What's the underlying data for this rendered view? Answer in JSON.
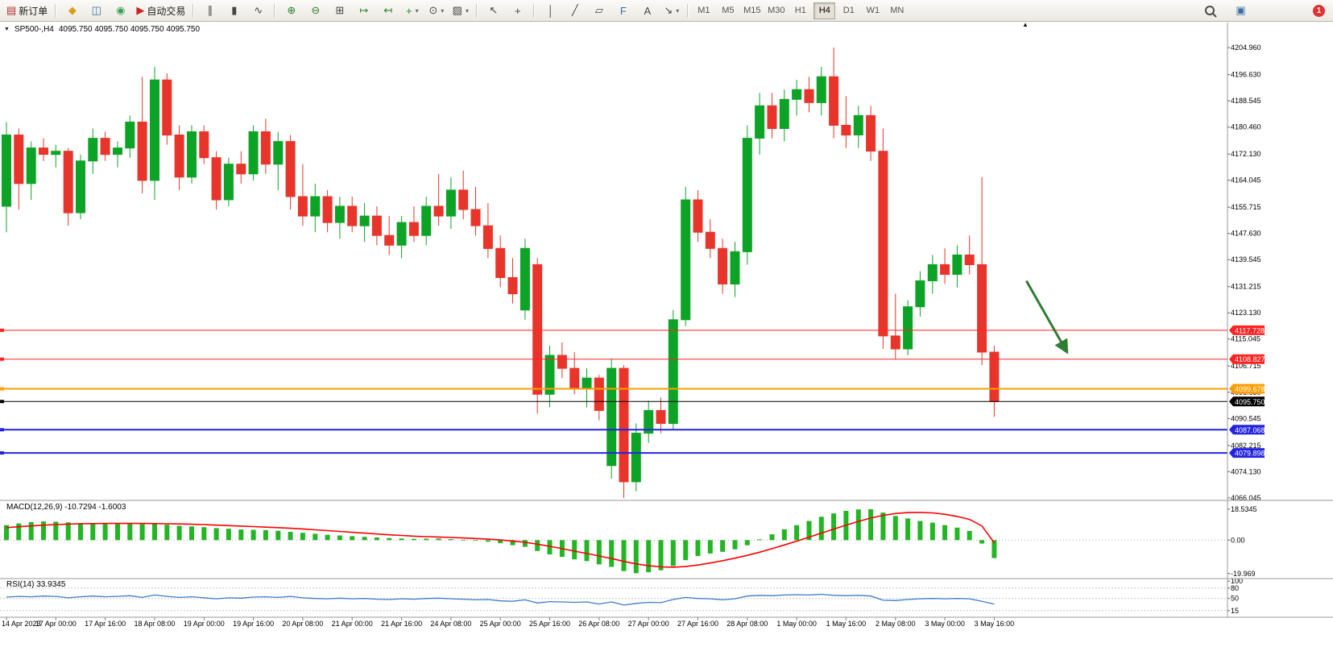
{
  "toolbar": {
    "buttons_left": [
      {
        "name": "new-order-button",
        "glyph": "▤",
        "glyph_color": "#b03030",
        "label": "新订单"
      },
      {
        "name": "separator"
      },
      {
        "name": "metaeditor-icon",
        "glyph": "◆",
        "glyph_color": "#d4a017"
      },
      {
        "name": "market-watch-icon",
        "glyph": "◫",
        "glyph_color": "#3a6ea5"
      },
      {
        "name": "data-window-icon",
        "glyph": "◉",
        "glyph_color": "#3aa05a"
      },
      {
        "name": "auto-trading-button",
        "glyph": "▶",
        "glyph_color": "#cc2222",
        "label": "自动交易"
      },
      {
        "name": "separator"
      },
      {
        "name": "bar-chart-mode-icon",
        "glyph": "∥"
      },
      {
        "name": "candlestick-mode-icon",
        "glyph": "▮"
      },
      {
        "name": "line-chart-mode-icon",
        "glyph": "∿"
      },
      {
        "name": "separator"
      },
      {
        "name": "zoom-in-icon",
        "glyph": "⊕",
        "glyph_color": "#2e7d32"
      },
      {
        "name": "zoom-out-icon",
        "glyph": "⊖",
        "glyph_color": "#2e7d32"
      },
      {
        "name": "tile-windows-icon",
        "glyph": "⊞"
      },
      {
        "name": "chart-shift-icon",
        "glyph": "↦",
        "glyph_color": "#2e7d32"
      },
      {
        "name": "auto-scroll-icon",
        "glyph": "↤",
        "glyph_color": "#2e7d32"
      },
      {
        "name": "add-indicator-button",
        "glyph": "+",
        "glyph_color": "#1f8f1f",
        "caret": true
      },
      {
        "name": "periods-button",
        "glyph": "⊙",
        "caret": true
      },
      {
        "name": "templates-button",
        "glyph": "▨",
        "caret": true
      },
      {
        "name": "separator"
      },
      {
        "name": "cursor-tool-icon",
        "glyph": "↖"
      },
      {
        "name": "crosshair-tool-icon",
        "glyph": "+"
      },
      {
        "name": "separator"
      },
      {
        "name": "vertical-line-tool-icon",
        "glyph": "│"
      },
      {
        "name": "trendline-tool-icon",
        "glyph": "╱"
      },
      {
        "name": "channel-tool-icon",
        "glyph": "▱"
      },
      {
        "name": "fibonacci-tool-icon",
        "glyph": "F",
        "glyph_color": "#3a6ea5"
      },
      {
        "name": "text-tool-icon",
        "glyph": "A"
      },
      {
        "name": "arrows-tool-button",
        "glyph": "↘",
        "caret": true
      },
      {
        "name": "separator"
      }
    ],
    "timeframes": [
      "M1",
      "M5",
      "M15",
      "M30",
      "H1",
      "H4",
      "D1",
      "W1",
      "MN"
    ],
    "active_timeframe": "H4",
    "community_glyph": "▣",
    "notification_count": "1"
  },
  "chart_header": {
    "collapse_icon": "▼",
    "symbol_period": "SP500-,H4",
    "ohlc": "4095.750 4095.750 4095.750 4095.750",
    "shift_marker": "▲"
  },
  "indicators": {
    "macd_label": "MACD(12,26,9) -10.7294 -1.6003",
    "rsi_label": "RSI(14) 33.9345"
  },
  "price_axis": {
    "ticks": [
      4204.96,
      4196.63,
      4188.545,
      4180.46,
      4172.13,
      4164.045,
      4155.715,
      4147.63,
      4139.545,
      4131.215,
      4123.13,
      4115.045,
      4106.715,
      4098.63,
      4090.545,
      4082.215,
      4074.13,
      4066.045
    ]
  },
  "levels": [
    {
      "value": "4117.728",
      "price": 4117.728,
      "color": "#ff2222",
      "width": 1,
      "name": "resistance-line-1"
    },
    {
      "value": "4108.827",
      "price": 4108.827,
      "color": "#ff2222",
      "width": 1,
      "name": "resistance-line-2"
    },
    {
      "value": "4099.678",
      "price": 4099.678,
      "color": "#ff9e00",
      "width": 2,
      "name": "orange-level-line"
    },
    {
      "value": "4095.750",
      "price": 4095.75,
      "color": "#000000",
      "width": 1,
      "name": "current-price-line"
    },
    {
      "value": "4087.068",
      "price": 4087.068,
      "color": "#2424e0",
      "width": 2,
      "name": "support-line-1"
    },
    {
      "value": "4079.898",
      "price": 4079.898,
      "color": "#2424e0",
      "width": 2,
      "name": "support-line-2"
    }
  ],
  "time_axis": [
    "14 Apr 2023",
    "17 Apr 00:00",
    "17 Apr 16:00",
    "18 Apr 08:00",
    "19 Apr 00:00",
    "19 Apr 16:00",
    "20 Apr 08:00",
    "21 Apr 00:00",
    "21 Apr 16:00",
    "24 Apr 08:00",
    "25 Apr 00:00",
    "25 Apr 16:00",
    "26 Apr 08:00",
    "27 Apr 00:00",
    "27 Apr 16:00",
    "28 Apr 08:00",
    "1 May 00:00",
    "1 May 16:00",
    "2 May 08:00",
    "3 May 00:00",
    "3 May 16:00"
  ],
  "chart_data": [
    {
      "type": "candlestick",
      "title": "SP500-,H4",
      "up_color": "#0da327",
      "down_color": "#e8352b",
      "ylim": [
        4065.5,
        4212.2
      ],
      "candles": [
        [
          4156,
          4182,
          4148,
          4178
        ],
        [
          4178,
          4180,
          4155,
          4163
        ],
        [
          4163,
          4176,
          4158,
          4174
        ],
        [
          4174,
          4177,
          4170,
          4172
        ],
        [
          4172,
          4175,
          4168,
          4173
        ],
        [
          4173,
          4174,
          4150,
          4154
        ],
        [
          4154,
          4172,
          4152,
          4170
        ],
        [
          4170,
          4180,
          4166,
          4177
        ],
        [
          4177,
          4179,
          4170,
          4172
        ],
        [
          4172,
          4176,
          4168,
          4174
        ],
        [
          4174,
          4184,
          4171,
          4182
        ],
        [
          4182,
          4196,
          4160,
          4164
        ],
        [
          4164,
          4199,
          4158,
          4195
        ],
        [
          4195,
          4197,
          4175,
          4178
        ],
        [
          4178,
          4181,
          4161,
          4165
        ],
        [
          4165,
          4181,
          4163,
          4179
        ],
        [
          4179,
          4181,
          4169,
          4171
        ],
        [
          4171,
          4173,
          4155,
          4158
        ],
        [
          4158,
          4171,
          4156,
          4169
        ],
        [
          4169,
          4173,
          4163,
          4166
        ],
        [
          4166,
          4181,
          4164,
          4179
        ],
        [
          4179,
          4183,
          4166,
          4169
        ],
        [
          4169,
          4179,
          4161,
          4176
        ],
        [
          4176,
          4178,
          4155,
          4159
        ],
        [
          4159,
          4169,
          4150,
          4153
        ],
        [
          4153,
          4163,
          4148,
          4159
        ],
        [
          4159,
          4161,
          4148,
          4151
        ],
        [
          4151,
          4159,
          4146,
          4156
        ],
        [
          4156,
          4159,
          4148,
          4150
        ],
        [
          4150,
          4157,
          4145,
          4153
        ],
        [
          4153,
          4156,
          4144,
          4147
        ],
        [
          4147,
          4153,
          4141,
          4144
        ],
        [
          4144,
          4153,
          4140,
          4151
        ],
        [
          4151,
          4156,
          4145,
          4147
        ],
        [
          4147,
          4159,
          4144,
          4156
        ],
        [
          4156,
          4166,
          4150,
          4153
        ],
        [
          4153,
          4165,
          4149,
          4161
        ],
        [
          4161,
          4167,
          4152,
          4155
        ],
        [
          4155,
          4162,
          4147,
          4150
        ],
        [
          4150,
          4157,
          4140,
          4143
        ],
        [
          4143,
          4147,
          4131,
          4134
        ],
        [
          4134,
          4140,
          4126,
          4129
        ],
        [
          4124,
          4146,
          4121,
          4143
        ],
        [
          4138,
          4140,
          4092,
          4098
        ],
        [
          4098,
          4113,
          4094,
          4110
        ],
        [
          4110,
          4114,
          4103,
          4106
        ],
        [
          4106,
          4111,
          4098,
          4100
        ],
        [
          4100,
          4106,
          4094,
          4103
        ],
        [
          4103,
          4104,
          4090,
          4093
        ],
        [
          4076,
          4109,
          4072,
          4106
        ],
        [
          4106,
          4107,
          4066,
          4071
        ],
        [
          4071,
          4089,
          4068,
          4086
        ],
        [
          4086,
          4096,
          4083,
          4093
        ],
        [
          4093,
          4097,
          4086,
          4089
        ],
        [
          4089,
          4124,
          4087,
          4121
        ],
        [
          4121,
          4162,
          4119,
          4158
        ],
        [
          4158,
          4161,
          4145,
          4148
        ],
        [
          4148,
          4152,
          4140,
          4143
        ],
        [
          4143,
          4146,
          4129,
          4132
        ],
        [
          4132,
          4145,
          4128,
          4142
        ],
        [
          4142,
          4181,
          4138,
          4177
        ],
        [
          4177,
          4191,
          4172,
          4187
        ],
        [
          4187,
          4191,
          4177,
          4180
        ],
        [
          4180,
          4192,
          4176,
          4189
        ],
        [
          4189,
          4195,
          4184,
          4192
        ],
        [
          4192,
          4196,
          4185,
          4188
        ],
        [
          4188,
          4199,
          4184,
          4196
        ],
        [
          4196,
          4205,
          4177,
          4181
        ],
        [
          4181,
          4190,
          4174,
          4178
        ],
        [
          4178,
          4187,
          4174,
          4184
        ],
        [
          4184,
          4187,
          4170,
          4173
        ],
        [
          4173,
          4180,
          4112,
          4116
        ],
        [
          4116,
          4129,
          4109,
          4112
        ],
        [
          4112,
          4127,
          4110,
          4125
        ],
        [
          4125,
          4136,
          4122,
          4133
        ],
        [
          4133,
          4141,
          4129,
          4138
        ],
        [
          4138,
          4143,
          4132,
          4135
        ],
        [
          4135,
          4144,
          4131,
          4141
        ],
        [
          4141,
          4147,
          4135,
          4138
        ],
        [
          4138,
          4165,
          4107,
          4111
        ],
        [
          4111,
          4113,
          4091,
          4095.75
        ]
      ]
    },
    {
      "type": "bar",
      "name": "MACD(12,26,9)",
      "color": "#23b523",
      "signal_color": "#ff0000",
      "ylim": [
        -22.5,
        23.3
      ],
      "axis_labels": [
        "18.5345",
        "0.00",
        "-19.969"
      ],
      "axis_values": [
        18.5345,
        0,
        -19.969
      ],
      "values": [
        9,
        10,
        10.8,
        11.2,
        11,
        10.6,
        10.2,
        9.8,
        10,
        10.3,
        10,
        9.6,
        9.8,
        9.2,
        8.6,
        8.2,
        7.8,
        7.2,
        6.8,
        6.4,
        6.2,
        6,
        5.6,
        5,
        4.4,
        3.8,
        3.2,
        2.8,
        2.4,
        2,
        1.6,
        1.2,
        1,
        0.8,
        0.9,
        1,
        0.6,
        0.2,
        -0.3,
        -0.9,
        -1.8,
        -3,
        -4,
        -6.5,
        -8.5,
        -10,
        -11.5,
        -12.5,
        -14.5,
        -16,
        -18.5,
        -19.8,
        -19.2,
        -18,
        -15.5,
        -12,
        -9.5,
        -8,
        -7,
        -5.5,
        -3,
        0.5,
        3.5,
        6.5,
        9,
        11.5,
        14,
        16,
        17.5,
        18.4,
        18.5,
        16.5,
        14.5,
        13,
        11.5,
        10.5,
        9,
        7.5,
        5.5,
        -2,
        -10.7294
      ],
      "signal": [
        7.5,
        8,
        8.5,
        9,
        9.3,
        9.6,
        9.8,
        9.9,
        10,
        10,
        10,
        10,
        9.9,
        9.8,
        9.7,
        9.5,
        9.3,
        9,
        8.7,
        8.4,
        8.1,
        7.8,
        7.5,
        7.1,
        6.7,
        6.2,
        5.7,
        5.2,
        4.7,
        4.2,
        3.7,
        3.2,
        2.8,
        2.4,
        2.1,
        1.9,
        1.6,
        1.3,
        1,
        0.6,
        0.1,
        -0.5,
        -1.3,
        -2.4,
        -3.7,
        -5.1,
        -6.6,
        -8,
        -9.5,
        -11,
        -12.7,
        -14.2,
        -15.3,
        -16,
        -16.2,
        -15.8,
        -14.9,
        -13.7,
        -12.3,
        -10.8,
        -9.1,
        -7.2,
        -5.1,
        -2.9,
        -0.6,
        1.8,
        4.2,
        6.6,
        9,
        11.2,
        13.2,
        14.8,
        15.9,
        16.5,
        16.6,
        16.3,
        15.5,
        14.2,
        12.4,
        8.5,
        -1.6003
      ]
    },
    {
      "type": "line",
      "name": "RSI(14)",
      "color": "#3f7cc9",
      "ylim": [
        0,
        100
      ],
      "levels": [
        80,
        50,
        15
      ],
      "axis_labels": [
        "100",
        "80",
        "50",
        "15"
      ],
      "axis_values": [
        100,
        80,
        50,
        15
      ],
      "values": [
        54,
        56,
        55,
        57,
        56,
        52,
        55,
        57,
        55,
        56,
        58,
        53,
        60,
        56,
        53,
        55,
        52,
        49,
        52,
        51,
        54,
        55,
        53,
        56,
        52,
        50,
        49,
        51,
        49,
        50,
        48,
        47,
        49,
        48,
        50,
        51,
        49,
        48,
        46,
        47,
        43,
        42,
        46,
        37,
        41,
        40,
        39,
        40,
        34,
        40,
        31,
        36,
        39,
        38,
        47,
        53,
        50,
        49,
        46,
        49,
        57,
        59,
        58,
        60,
        61,
        60,
        62,
        59,
        58,
        59,
        57,
        45,
        44,
        47,
        49,
        50,
        49,
        50,
        49,
        42,
        33.9345
      ]
    }
  ],
  "annotations": [
    {
      "type": "arrow",
      "name": "sell-signal-arrow",
      "color": "#2e7d32",
      "from_index": 82.6,
      "from_price": 4133,
      "to_index": 85.9,
      "to_price": 4111
    }
  ]
}
